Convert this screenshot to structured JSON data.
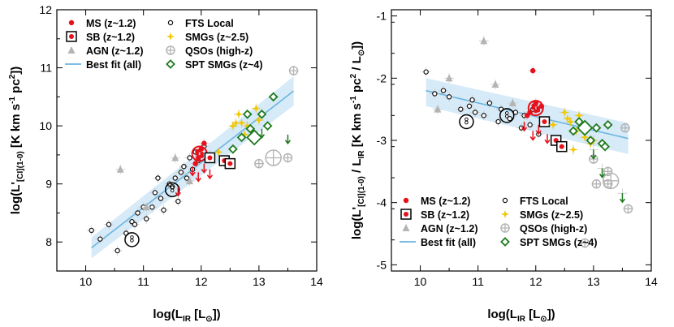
{
  "legend": [
    {
      "key": "ms",
      "label": "MS (z~1.2)",
      "marker": "dot",
      "color": "#e8101a"
    },
    {
      "key": "fts",
      "label": "FTS Local",
      "marker": "ring",
      "color": "#111111"
    },
    {
      "key": "sb",
      "label": "SB (z~1.2)",
      "marker": "boxdot",
      "color": "#e8101a"
    },
    {
      "key": "smg",
      "label": "SMGs (z~2.5)",
      "marker": "star",
      "color": "#f2c800"
    },
    {
      "key": "agn",
      "label": "AGN (z~1.2)",
      "marker": "triangle",
      "color": "#b4b4b4"
    },
    {
      "key": "qso",
      "label": "QSOs (high-z)",
      "marker": "qso",
      "color": "#b4b4b4"
    },
    {
      "key": "fit",
      "label": "Best fit (all)",
      "marker": "line",
      "color": "#6ab5e0"
    },
    {
      "key": "spt",
      "label": "SPT SMGs (z~4)",
      "marker": "diamond",
      "color": "#1e7a1e"
    }
  ],
  "colors": {
    "ms": "#e8101a",
    "fts": "#111111",
    "smg": "#f2c800",
    "gray": "#b4b4b4",
    "spt": "#1e7a1e",
    "fit": "#6ab5e0",
    "band": "#cfe6f6"
  },
  "chart_data": [
    {
      "type": "scatter",
      "panel": "left",
      "xlabel": "log(L_IR [L_⊙])",
      "ylabel": "log(L'_[CI](1-0) [K km s^-1 pc^2])",
      "xlim": [
        9.5,
        14
      ],
      "ylim": [
        7.5,
        12
      ],
      "xticks": [
        10,
        11,
        12,
        13,
        14
      ],
      "yticks": [
        8,
        9,
        10,
        11,
        12
      ],
      "legend_position": "top-left",
      "fit": {
        "x": [
          10.1,
          13.6
        ],
        "y": [
          7.9,
          10.6
        ],
        "band_lo": [
          7.72,
          10.35
        ],
        "band_hi": [
          8.08,
          10.85
        ]
      },
      "series": [
        {
          "name": "FTS Local",
          "x": [
            10.1,
            10.25,
            10.4,
            10.55,
            10.7,
            10.8,
            10.9,
            11.05,
            11.15,
            11.2,
            11.3,
            11.35,
            11.45,
            11.5,
            11.55,
            11.6,
            11.65,
            11.7,
            11.75,
            11.8,
            11.85,
            11.9,
            11.95,
            12.05,
            12.15,
            11.25,
            11.0,
            10.85
          ],
          "y": [
            8.2,
            8.05,
            8.3,
            7.85,
            8.15,
            8.35,
            8.5,
            8.4,
            8.6,
            8.85,
            8.75,
            8.55,
            9.0,
            8.95,
            9.1,
            8.7,
            9.2,
            9.3,
            9.1,
            9.45,
            9.25,
            9.55,
            9.4,
            9.65,
            9.5,
            9.1,
            8.6,
            8.3
          ]
        },
        {
          "name": "FTS Local (stacked)",
          "x": [
            10.8,
            11.5
          ],
          "y": [
            8.04,
            8.9
          ]
        },
        {
          "name": "MS (z~1.2)",
          "x": [
            11.95,
            12.0,
            11.9,
            12.05,
            12.1
          ],
          "y": [
            9.45,
            9.6,
            9.35,
            9.7,
            9.5
          ],
          "upper_limits": {
            "x": [
              11.85,
              11.95,
              12.05,
              12.15,
              11.6
            ],
            "y": [
              9.3,
              9.2,
              9.35,
              9.25,
              8.95
            ]
          },
          "stack": {
            "x": [
              11.97
            ],
            "y": [
              9.52
            ]
          }
        },
        {
          "name": "SB (z~1.2)",
          "x": [
            12.15,
            12.4,
            12.5
          ],
          "y": [
            9.45,
            9.4,
            9.35
          ]
        },
        {
          "name": "AGN (z~1.2)",
          "x": [
            10.6,
            11.05,
            11.55,
            11.8
          ],
          "y": [
            9.25,
            8.6,
            9.45,
            9.05
          ]
        },
        {
          "name": "SMGs (z~2.5)",
          "x": [
            12.3,
            12.55,
            12.65,
            12.7,
            12.8,
            12.85,
            12.9,
            12.95,
            13.0,
            13.05,
            12.75,
            12.6
          ],
          "y": [
            9.55,
            10.0,
            10.2,
            10.05,
            10.0,
            9.8,
            9.9,
            10.3,
            10.1,
            10.2,
            9.85,
            10.05
          ]
        },
        {
          "name": "QSOs (high-z)",
          "x": [
            13.6,
            13.5,
            13.0
          ],
          "y": [
            10.95,
            9.45,
            9.35
          ]
        },
        {
          "name": "SPT SMGs (z~4)",
          "x": [
            12.55,
            12.7,
            12.85,
            12.95,
            13.05,
            13.15,
            13.25,
            12.8
          ],
          "y": [
            9.6,
            9.8,
            9.95,
            9.8,
            10.2,
            10.0,
            10.5,
            10.2
          ],
          "upper_limits": {
            "x": [
              13.05,
              13.5
            ],
            "y": [
              9.95,
              9.85
            ]
          },
          "stack": {
            "x": [
              12.92
            ],
            "y": [
              9.8
            ]
          }
        }
      ]
    },
    {
      "type": "scatter",
      "panel": "right",
      "xlabel": "log(L_IR [L_⊙])",
      "ylabel": "log(L'_[CI](1-0) / L_IR [K km s^-1 pc^2 / L_⊙])",
      "xlim": [
        9.5,
        14
      ],
      "ylim": [
        -5.1,
        -0.9
      ],
      "xticks": [
        10,
        11,
        12,
        13,
        14
      ],
      "yticks": [
        -5,
        -4,
        -3,
        -2,
        -1
      ],
      "legend_position": "bottom-left",
      "fit": {
        "x": [
          10.1,
          13.6
        ],
        "y": [
          -2.2,
          -2.97
        ],
        "band_lo": [
          -2.45,
          -3.22
        ],
        "band_hi": [
          -2.0,
          -2.72
        ]
      },
      "series": [
        {
          "name": "FTS Local",
          "x": [
            10.1,
            10.25,
            10.5,
            10.7,
            10.85,
            10.95,
            11.1,
            11.2,
            11.35,
            11.4,
            11.55,
            11.65,
            11.75,
            11.8,
            11.9,
            11.95,
            12.05,
            12.15,
            10.4,
            10.9
          ],
          "y": [
            -1.9,
            -2.25,
            -2.3,
            -2.5,
            -2.45,
            -2.55,
            -2.6,
            -2.4,
            -2.7,
            -2.5,
            -2.65,
            -2.55,
            -2.8,
            -2.6,
            -2.75,
            -2.5,
            -2.9,
            -2.7,
            -2.2,
            -2.35
          ]
        },
        {
          "name": "FTS Local (stacked)",
          "x": [
            10.8,
            11.5
          ],
          "y": [
            -2.7,
            -2.6
          ]
        },
        {
          "name": "MS (z~1.2)",
          "x": [
            11.95,
            12.0,
            11.9,
            12.1,
            11.85
          ],
          "y": [
            -1.88,
            -2.4,
            -2.55,
            -2.45,
            -2.6
          ],
          "upper_limits": {
            "x": [
              11.8,
              11.95,
              12.05,
              12.2
            ],
            "y": [
              -2.7,
              -2.85,
              -2.75,
              -2.9
            ]
          },
          "stack": {
            "x": [
              12.0
            ],
            "y": [
              -2.48
            ]
          }
        },
        {
          "name": "SB (z~1.2)",
          "x": [
            12.15,
            12.35,
            12.45
          ],
          "y": [
            -2.7,
            -3.0,
            -3.1
          ]
        },
        {
          "name": "AGN (z~1.2)",
          "x": [
            11.1,
            11.3,
            11.6,
            10.5,
            10.3
          ],
          "y": [
            -1.4,
            -2.1,
            -2.4,
            -2.0,
            -2.5
          ]
        },
        {
          "name": "SMGs (z~2.5)",
          "x": [
            12.3,
            12.5,
            12.6,
            12.7,
            12.75,
            12.85,
            12.95,
            13.0,
            12.65,
            12.55
          ],
          "y": [
            -2.75,
            -2.55,
            -2.7,
            -2.85,
            -2.6,
            -2.95,
            -3.05,
            -3.0,
            -3.15,
            -2.65
          ]
        },
        {
          "name": "QSOs (high-z)",
          "x": [
            13.0,
            13.05,
            13.25,
            13.55,
            13.6,
            13.25,
            12.85
          ],
          "y": [
            -3.3,
            -3.7,
            -3.5,
            -2.8,
            -4.1,
            -3.7,
            -4.65
          ]
        },
        {
          "name": "SPT SMGs (z~4)",
          "x": [
            12.65,
            12.75,
            12.95,
            13.05,
            13.15,
            13.25,
            13.2
          ],
          "y": [
            -2.85,
            -2.7,
            -3.0,
            -2.8,
            -3.05,
            -2.75,
            -3.1
          ]
        },
        {
          "name": "SPT SMGs limits",
          "x": [
            13.0,
            13.15,
            13.5
          ],
          "y": [
            -3.15,
            -3.45,
            -3.85
          ],
          "upper_limits": {
            "x": [
              13.0,
              13.15,
              13.5
            ],
            "y": [
              -3.15,
              -3.45,
              -3.85
            ]
          },
          "stack": {
            "x": [
              12.85
            ],
            "y": [
              -2.8
            ]
          }
        }
      ]
    }
  ]
}
